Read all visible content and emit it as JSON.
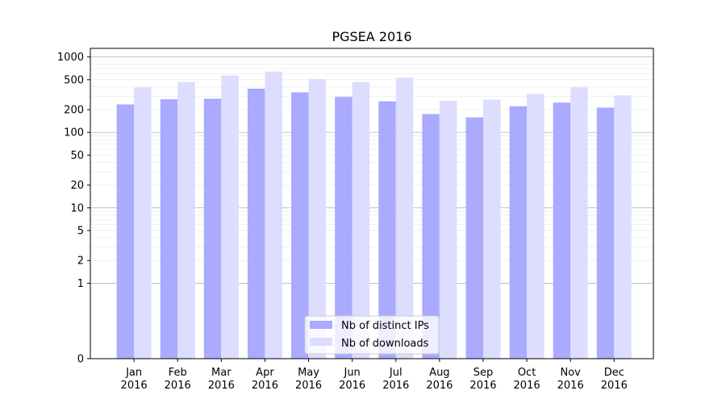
{
  "chart_data": {
    "type": "bar",
    "title": "PGSEA 2016",
    "xlabel": "",
    "ylabel": "",
    "yscale": "symlog",
    "ylim": [
      0,
      1300
    ],
    "yticks": [
      {
        "value": 0,
        "label": "0"
      },
      {
        "value": 1,
        "label": "1"
      },
      {
        "value": 2,
        "label": "2"
      },
      {
        "value": 5,
        "label": "5"
      },
      {
        "value": 10,
        "label": "10"
      },
      {
        "value": 20,
        "label": "20"
      },
      {
        "value": 50,
        "label": "50"
      },
      {
        "value": 100,
        "label": "100"
      },
      {
        "value": 200,
        "label": "200"
      },
      {
        "value": 500,
        "label": "500"
      },
      {
        "value": 1000,
        "label": "1000"
      }
    ],
    "grid": true,
    "legend_position": "bottom-center",
    "categories": [
      {
        "month": "Jan",
        "year": "2016"
      },
      {
        "month": "Feb",
        "year": "2016"
      },
      {
        "month": "Mar",
        "year": "2016"
      },
      {
        "month": "Apr",
        "year": "2016"
      },
      {
        "month": "May",
        "year": "2016"
      },
      {
        "month": "Jun",
        "year": "2016"
      },
      {
        "month": "Jul",
        "year": "2016"
      },
      {
        "month": "Aug",
        "year": "2016"
      },
      {
        "month": "Sep",
        "year": "2016"
      },
      {
        "month": "Oct",
        "year": "2016"
      },
      {
        "month": "Nov",
        "year": "2016"
      },
      {
        "month": "Dec",
        "year": "2016"
      }
    ],
    "series": [
      {
        "name": "Nb of distinct IPs",
        "color": "#aaaaff",
        "values": [
          235,
          275,
          280,
          380,
          340,
          295,
          258,
          175,
          158,
          222,
          248,
          213
        ]
      },
      {
        "name": "Nb of downloads",
        "color": "#ddddff",
        "values": [
          395,
          465,
          570,
          640,
          510,
          465,
          530,
          262,
          272,
          325,
          395,
          310
        ]
      }
    ]
  }
}
